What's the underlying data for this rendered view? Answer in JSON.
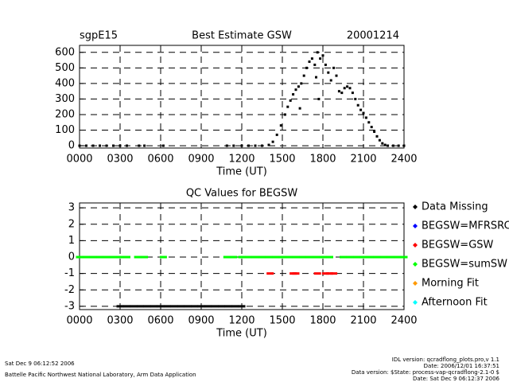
{
  "chart_data": [
    {
      "type": "scatter",
      "title": "Best Estimate GSW",
      "subtitle_left": "sgpE15",
      "subtitle_right": "20001214",
      "x_label": "Time (UT)",
      "xlim": [
        0,
        24
      ],
      "xticks": [
        {
          "value": 0,
          "label": "0000"
        },
        {
          "value": 3,
          "label": "0300"
        },
        {
          "value": 6,
          "label": "0600"
        },
        {
          "value": 9,
          "label": "0900"
        },
        {
          "value": 12,
          "label": "1200"
        },
        {
          "value": 15,
          "label": "1500"
        },
        {
          "value": 18,
          "label": "1800"
        },
        {
          "value": 21,
          "label": "2100"
        },
        {
          "value": 24,
          "label": "2400"
        }
      ],
      "ylim": [
        -15,
        645
      ],
      "yticks": [
        0,
        100,
        200,
        300,
        400,
        500,
        600
      ],
      "grid": true,
      "series": [
        {
          "color": "#000000",
          "x": [
            0,
            0.5,
            1,
            1.5,
            2,
            2.5,
            3,
            3.5,
            4.4,
            4.8,
            6.2,
            10.9,
            11.4,
            12,
            12.5,
            13,
            13.5,
            14,
            14.3,
            14.6,
            14.9,
            15.2,
            15.4,
            15.6,
            15.8,
            16,
            16.2,
            16.3,
            16.4,
            16.6,
            16.8,
            17,
            17.2,
            17.4,
            17.5,
            17.6,
            17.7,
            17.8,
            18,
            18.2,
            18.4,
            18.6,
            18.8,
            19,
            19.2,
            19.4,
            19.6,
            19.8,
            20,
            20.2,
            20.4,
            20.6,
            20.8,
            21,
            21.2,
            21.4,
            21.6,
            21.8,
            22,
            22.2,
            22.4,
            22.6,
            22.8,
            23.2,
            23.6,
            24
          ],
          "values": [
            0,
            0,
            0,
            0,
            0,
            0,
            0,
            0,
            0,
            0,
            0,
            0,
            0,
            0,
            0,
            0,
            0,
            5,
            25,
            70,
            130,
            200,
            250,
            290,
            330,
            360,
            380,
            240,
            400,
            450,
            500,
            540,
            560,
            520,
            440,
            600,
            300,
            560,
            580,
            520,
            470,
            420,
            500,
            450,
            350,
            340,
            370,
            380,
            370,
            340,
            300,
            260,
            230,
            210,
            180,
            150,
            120,
            90,
            60,
            35,
            15,
            5,
            0,
            0,
            0,
            0
          ]
        }
      ]
    },
    {
      "type": "scatter",
      "title": "QC Values for BEGSW",
      "x_label": "Time (UT)",
      "xlim": [
        0,
        24
      ],
      "xticks": [
        {
          "value": 0,
          "label": "0000"
        },
        {
          "value": 3,
          "label": "0300"
        },
        {
          "value": 6,
          "label": "0600"
        },
        {
          "value": 9,
          "label": "0900"
        },
        {
          "value": 12,
          "label": "1200"
        },
        {
          "value": 15,
          "label": "1500"
        },
        {
          "value": 18,
          "label": "1800"
        },
        {
          "value": 21,
          "label": "2100"
        },
        {
          "value": 24,
          "label": "2400"
        }
      ],
      "ylim": [
        -3.2,
        3.3
      ],
      "yticks": [
        -3,
        -2,
        -1,
        0,
        1,
        2,
        3
      ],
      "grid": true,
      "series": [
        {
          "name": "Data Missing",
          "color": "#000000",
          "x": [
            3,
            3.5,
            4,
            4.5,
            5,
            5.5,
            6,
            6.5,
            7,
            7.5,
            8,
            8.5,
            9,
            9.5,
            10,
            10.5,
            11,
            11.5,
            12
          ],
          "values": [
            -3,
            -3,
            -3,
            -3,
            -3,
            -3,
            -3,
            -3,
            -3,
            -3,
            -3,
            -3,
            -3,
            -3,
            -3,
            -3,
            -3,
            -3,
            -3
          ]
        },
        {
          "name": "BEGSW=MFRSRC",
          "color": "#0000ff",
          "x": [],
          "values": []
        },
        {
          "name": "BEGSW=GSW",
          "color": "#ff0000",
          "x": [
            14.1,
            15.8,
            16,
            17.6,
            18.2,
            18.5,
            18.8
          ],
          "values": [
            -1,
            -1,
            -1,
            -1,
            -1,
            -1,
            -1
          ]
        },
        {
          "name": "BEGSW=sumSW",
          "color": "#00ff00",
          "x": [
            0,
            0.5,
            1,
            1.5,
            2,
            2.5,
            3,
            3.5,
            4.3,
            4.8,
            6.2,
            10.9,
            11.4,
            12,
            12.5,
            13,
            13.5,
            14,
            14.5,
            15,
            15.5,
            16,
            16.5,
            17,
            17.5,
            18,
            18.5,
            19.5,
            20,
            20.5,
            21,
            21.5,
            22,
            22.5,
            23,
            23.5,
            24
          ],
          "values": [
            0,
            0,
            0,
            0,
            0,
            0,
            0,
            0,
            0,
            0,
            0,
            0,
            0,
            0,
            0,
            0,
            0,
            0,
            0,
            0,
            0,
            0,
            0,
            0,
            0,
            0,
            0,
            0,
            0,
            0,
            0,
            0,
            0,
            0,
            0,
            0,
            0
          ]
        },
        {
          "name": "Morning Fit",
          "color": "#ff9900",
          "x": [],
          "values": []
        },
        {
          "name": "Afternoon Fit",
          "color": "#00ffff",
          "x": [],
          "values": []
        }
      ]
    }
  ],
  "footer": {
    "left": [
      "Sat Dec  9 06:12:52 2006",
      "Battelle Pacific Northwest National Laboratory, Arm Data Application"
    ],
    "right": [
      "IDL version: qcradflong_plots.pro,v 1.1",
      "Date: 2006/12/01 16:37:51",
      "Data version: $State: process-vap-qcradflong-2.1-0 $",
      "Date: Sat Dec  9 06:12:37 2006"
    ]
  }
}
